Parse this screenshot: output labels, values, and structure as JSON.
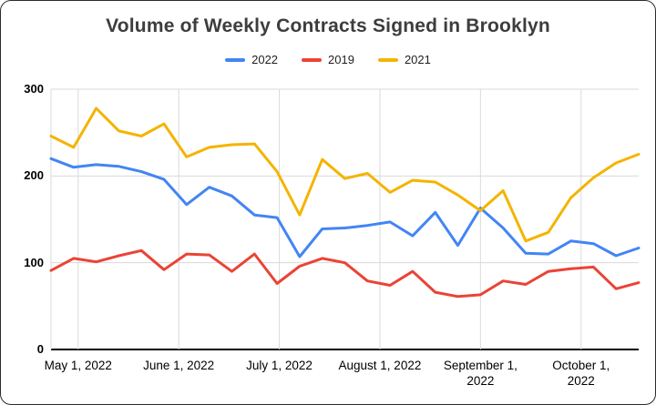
{
  "chart_data": {
    "type": "line",
    "title": "Volume of Weekly Contracts Signed in Brooklyn",
    "xlabel": "",
    "ylabel": "",
    "ylim": [
      0,
      300
    ],
    "grid": true,
    "legend_position": "top",
    "y_ticks": [
      0,
      100,
      200,
      300
    ],
    "x_tick_labels": [
      "May 1, 2022",
      "June 1, 2022",
      "July 1, 2022",
      "August 1, 2022",
      "September 1,\n2022",
      "October 1,\n2022"
    ],
    "x_tick_indices": [
      1.2,
      5.65,
      10.1,
      14.55,
      19.0,
      23.45
    ],
    "series": [
      {
        "name": "2022",
        "color": "#4285F4",
        "values": [
          220,
          210,
          213,
          211,
          205,
          196,
          167,
          187,
          177,
          155,
          152,
          107,
          139,
          140,
          143,
          147,
          131,
          158,
          120,
          163,
          140,
          111,
          110,
          125,
          122,
          108,
          117
        ]
      },
      {
        "name": "2019",
        "color": "#EA4335",
        "values": [
          91,
          105,
          101,
          108,
          114,
          92,
          110,
          109,
          90,
          110,
          76,
          96,
          105,
          100,
          79,
          74,
          90,
          66,
          61,
          63,
          79,
          75,
          90,
          93,
          95,
          70,
          77
        ]
      },
      {
        "name": "2021",
        "color": "#F4B400",
        "values": [
          246,
          233,
          278,
          252,
          246,
          260,
          222,
          233,
          236,
          237,
          205,
          155,
          219,
          197,
          203,
          181,
          195,
          193,
          178,
          160,
          183,
          125,
          135,
          175,
          198,
          215,
          225
        ]
      }
    ],
    "axis_colors": {
      "gridline": "#dadada",
      "baseline": "#000000"
    }
  }
}
